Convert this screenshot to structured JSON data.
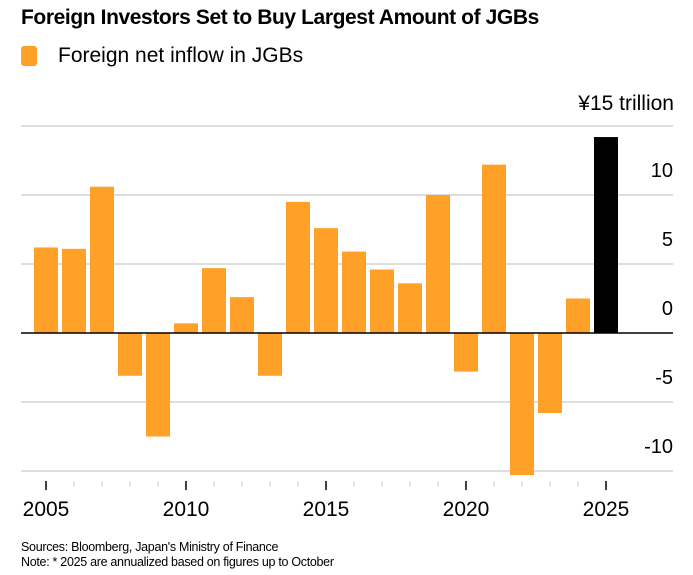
{
  "chart_data": {
    "type": "bar",
    "title": "Foreign Investors Set to Buy Largest Amount of JGBs",
    "legend": [
      {
        "label": "Foreign net inflow in JGBs",
        "color": "#FFA028"
      }
    ],
    "legend_placement": "top-left",
    "unit_label": "¥15 trillion",
    "xlabel": "",
    "ylabel": "",
    "categories": [
      "2005",
      "2006",
      "2007",
      "2008",
      "2009",
      "2010",
      "2011",
      "2012",
      "2013",
      "2014",
      "2015",
      "2016",
      "2017",
      "2018",
      "2019",
      "2020",
      "2021",
      "2022",
      "2023",
      "2024",
      "2025"
    ],
    "values": [
      6.2,
      6.1,
      10.6,
      -3.1,
      -7.5,
      0.7,
      4.7,
      2.6,
      -3.1,
      9.5,
      7.6,
      5.9,
      4.6,
      3.6,
      10.0,
      -2.8,
      12.2,
      -10.3,
      -5.8,
      2.5,
      14.2
    ],
    "highlight": {
      "category": "2025",
      "color": "#000000",
      "note": "annualized"
    },
    "bar_color": "#FFA028",
    "ylim": [
      -10,
      15
    ],
    "yticks": [
      15,
      10,
      5,
      0,
      -5,
      -10
    ],
    "ytick_labels": [
      "",
      "10",
      "5",
      "0",
      "-5",
      "-10"
    ],
    "xtick_major_labels": [
      "2005",
      "2010",
      "2015",
      "2020",
      "2025"
    ],
    "grid": true,
    "y_axis_position": "right"
  },
  "footer": {
    "sources": "Sources: Bloomberg, Japan's Ministry of Finance",
    "note": "Note: * 2025 are annualized based on figures up to October"
  }
}
